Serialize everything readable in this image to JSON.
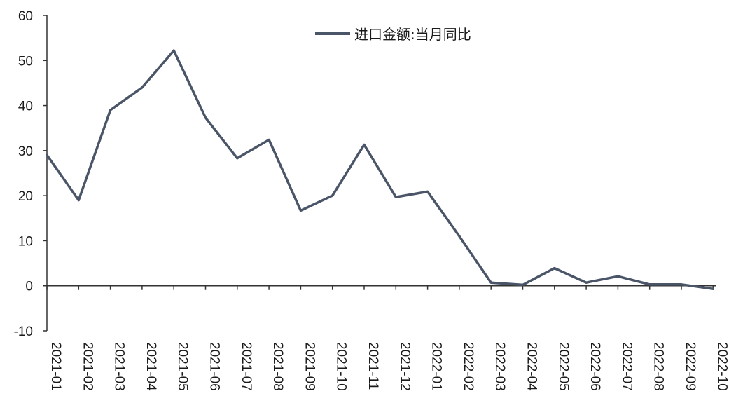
{
  "chart_data": {
    "type": "line",
    "title": "",
    "xlabel": "",
    "ylabel": "",
    "categories": [
      "2021-01",
      "2021-02",
      "2021-03",
      "2021-04",
      "2021-05",
      "2021-06",
      "2021-07",
      "2021-08",
      "2021-09",
      "2021-10",
      "2021-11",
      "2021-12",
      "2022-01",
      "2022-02",
      "2022-03",
      "2022-04",
      "2022-05",
      "2022-06",
      "2022-07",
      "2022-08",
      "2022-09",
      "2022-10"
    ],
    "series": [
      {
        "name": "进口金额:当月同比",
        "color": "#4a5568",
        "values": [
          29.0,
          19.0,
          39.0,
          44.0,
          52.2,
          37.3,
          28.3,
          32.4,
          16.7,
          20.0,
          31.3,
          19.7,
          20.9,
          11.0,
          0.7,
          0.2,
          3.9,
          0.7,
          2.1,
          0.3,
          0.3,
          -0.7
        ]
      }
    ],
    "ylim": [
      -10,
      60
    ],
    "yticks": [
      -10,
      0,
      10,
      20,
      30,
      40,
      50,
      60
    ],
    "grid": false,
    "legend_position": "top-center"
  }
}
